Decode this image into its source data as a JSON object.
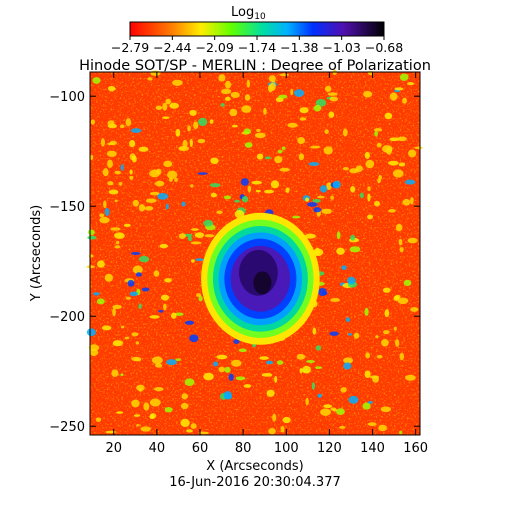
{
  "chart_data": {
    "type": "heatmap",
    "title": "Hinode SOT/SP - MERLIN : Degree of Polarization",
    "xlabel": "X (Arcseconds)",
    "ylabel": "Y (Arcseconds)",
    "timestamp": "16-Jun-2016 20:30:04.377",
    "xlim": [
      9,
      162
    ],
    "ylim": [
      -254,
      -89
    ],
    "xticks": [
      20,
      40,
      60,
      80,
      100,
      120,
      140,
      160
    ],
    "yticks": [
      -100,
      -150,
      -200,
      -250
    ],
    "colorbar": {
      "label_base": "Log",
      "label_sub": "10",
      "range": [
        -2.79,
        -0.68
      ],
      "ticks": [
        "-2.79",
        "-2.44",
        "-2.09",
        "-1.74",
        "-1.38",
        "-1.03",
        "-0.68"
      ],
      "colormap": "rainbow (red to black)"
    },
    "features": {
      "sunspot_umbra_center": [
        88,
        -183
      ],
      "umbra_radius_x": 12,
      "umbra_radius_y": 13,
      "penumbra_radius_x": 22,
      "penumbra_radius_y": 24
    }
  }
}
